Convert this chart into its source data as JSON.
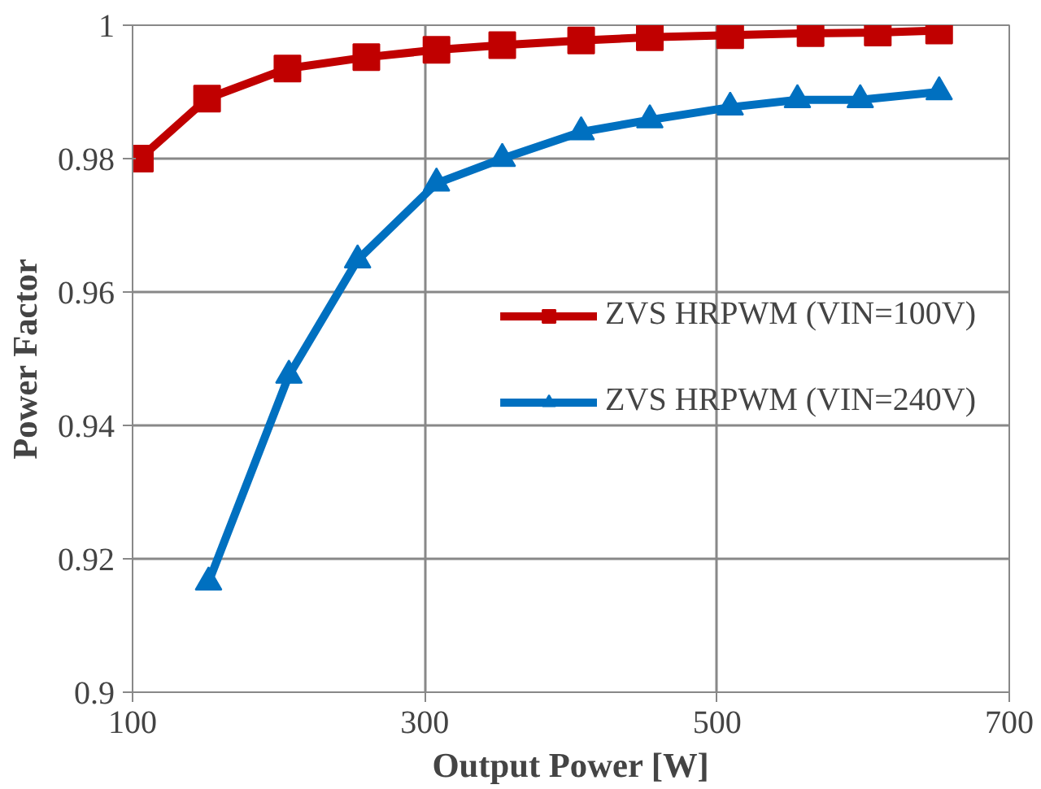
{
  "chart_data": {
    "type": "line",
    "xlabel": "Output Power [W]",
    "ylabel": "Power Factor",
    "xlim": [
      100,
      700
    ],
    "xticks": [
      100,
      300,
      500,
      700
    ],
    "ylim": [
      0.9,
      1
    ],
    "yticks": [
      0.9,
      0.92,
      0.94,
      0.96,
      0.98,
      1
    ],
    "grid": true,
    "legend": "right",
    "line_style": "solid",
    "series": [
      {
        "name": "ZVS HRPWM (VIN=100V)",
        "color": "#c00000",
        "marker": "square",
        "x": [
          105,
          151,
          206,
          260,
          308,
          353,
          407,
          454,
          509,
          564,
          610,
          652
        ],
        "values": [
          0.98,
          0.989,
          0.9935,
          0.9952,
          0.9963,
          0.997,
          0.9977,
          0.9982,
          0.9985,
          0.9988,
          0.9989,
          0.9992
        ]
      },
      {
        "name": "ZVS HRPWM (VIN=240V)",
        "color": "#0070c0",
        "marker": "triangle",
        "x": [
          152,
          207,
          254,
          308,
          353,
          407,
          454,
          509,
          555,
          598,
          652
        ],
        "values": [
          0.9165,
          0.9475,
          0.9648,
          0.9763,
          0.98,
          0.984,
          0.9858,
          0.9877,
          0.9888,
          0.9888,
          0.99
        ]
      }
    ]
  }
}
